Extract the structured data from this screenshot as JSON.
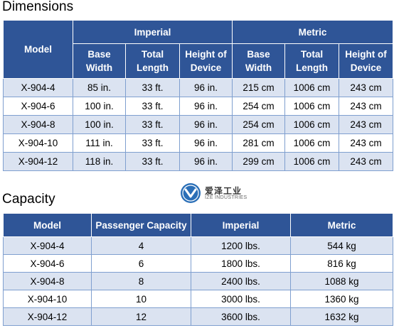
{
  "dimensions": {
    "title": "Dimensions",
    "header": {
      "model": "Model",
      "imperial": "Imperial",
      "metric": "Metric",
      "base_width": "Base Width",
      "total_length": "Total Length",
      "height_of_device": "Height of Device"
    },
    "rows": [
      {
        "model": "X-904-4",
        "imp_width": "85 in.",
        "imp_length": "33 ft.",
        "imp_height": "96 in.",
        "met_width": "215 cm",
        "met_length": "1006 cm",
        "met_height": "243 cm"
      },
      {
        "model": "X-904-6",
        "imp_width": "100 in.",
        "imp_length": "33 ft.",
        "imp_height": "96 in.",
        "met_width": "254 cm",
        "met_length": "1006 cm",
        "met_height": "243 cm"
      },
      {
        "model": "X-904-8",
        "imp_width": "100 in.",
        "imp_length": "33 ft.",
        "imp_height": "96 in.",
        "met_width": "254 cm",
        "met_length": "1006 cm",
        "met_height": "243 cm"
      },
      {
        "model": "X-904-10",
        "imp_width": "111 in.",
        "imp_length": "33 ft.",
        "imp_height": "96 in.",
        "met_width": "281 cm",
        "met_length": "1006 cm",
        "met_height": "243 cm"
      },
      {
        "model": "X-904-12",
        "imp_width": "118 in.",
        "imp_length": "33 ft.",
        "imp_height": "96 in.",
        "met_width": "299 cm",
        "met_length": "1006 cm",
        "met_height": "243 cm"
      }
    ]
  },
  "logo": {
    "cn_text": "爱泽工业",
    "en_text": "IZE INDUSTRIES",
    "icon": "ize-logo-icon",
    "color": "#2b6fb7"
  },
  "capacity": {
    "title": "Capacity",
    "header": {
      "model": "Model",
      "passenger_capacity": "Passenger Capacity",
      "imperial": "Imperial",
      "metric": "Metric"
    },
    "rows": [
      {
        "model": "X-904-4",
        "passengers": "4",
        "imperial": "1200 lbs.",
        "metric": "544 kg"
      },
      {
        "model": "X-904-6",
        "passengers": "6",
        "imperial": "1800 lbs.",
        "metric": "816 kg"
      },
      {
        "model": "X-904-8",
        "passengers": "8",
        "imperial": "2400 lbs.",
        "metric": "1088 kg"
      },
      {
        "model": "X-904-10",
        "passengers": "10",
        "imperial": "3000 lbs.",
        "metric": "1360 kg"
      },
      {
        "model": "X-904-12",
        "passengers": "12",
        "imperial": "3600 lbs.",
        "metric": "1632 kg"
      }
    ]
  },
  "colors": {
    "header_bg": "#2f5597",
    "stripe_bg": "#dbe3f1",
    "border": "#7f9fcf"
  }
}
